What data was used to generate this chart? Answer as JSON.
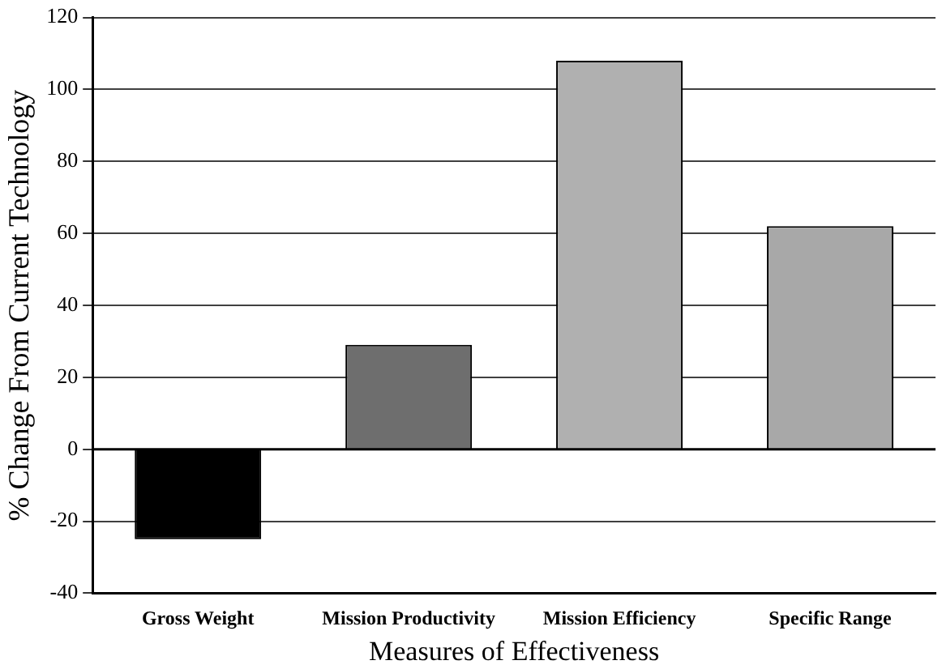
{
  "chart_data": {
    "type": "bar",
    "xlabel": "Measures of Effectiveness",
    "ylabel": "% Change From Current Technology",
    "categories": [
      "Gross Weight",
      "Mission Productivity",
      "Mission Efficiency",
      "Specific Range"
    ],
    "values": [
      -25,
      29,
      108,
      62
    ],
    "colors": [
      "#000000",
      "#6e6e6e",
      "#b0b0b0",
      "#a8a8a8"
    ],
    "ylim": [
      -40,
      120
    ],
    "yticks": [
      -40,
      -20,
      0,
      20,
      40,
      60,
      80,
      100,
      120
    ],
    "grid": "y",
    "legend": false
  }
}
